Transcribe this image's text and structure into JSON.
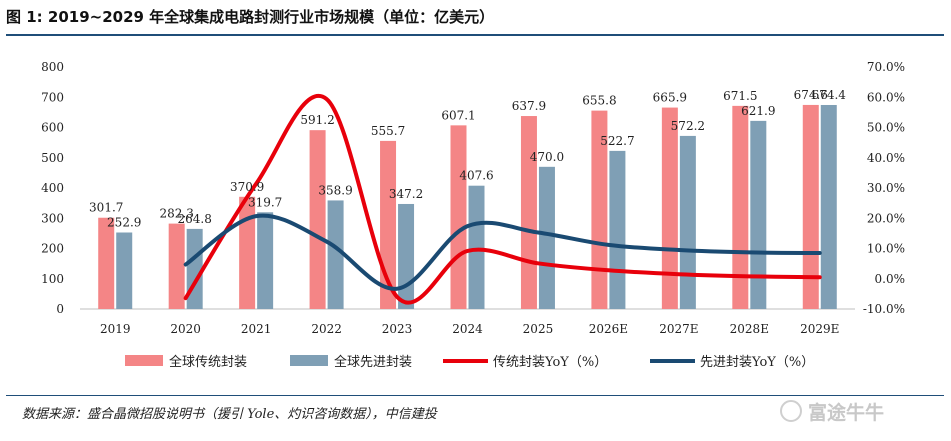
{
  "title": "图 1: 2019~2029 年全球集成电路封测行业市场规模（单位：亿美元）",
  "source": "数据来源：盛合晶微招股说明书（援引 Yole、灼识咨询数据），中信建投",
  "watermark": "富途牛牛",
  "colors": {
    "traditional_bar": "#f48586",
    "advanced_bar": "#7f9fb5",
    "traditional_line": "#e8000b",
    "advanced_line": "#1a4a72",
    "title_rule": "#1f4e79"
  },
  "chart_data": {
    "type": "bar",
    "categories": [
      "2019",
      "2020",
      "2021",
      "2022",
      "2023",
      "2024",
      "2025",
      "2026E",
      "2027E",
      "2028E",
      "2029E"
    ],
    "series": [
      {
        "name": "全球传统封装",
        "type": "bar",
        "axis": "left",
        "values": [
          301.7,
          282.3,
          370.9,
          591.2,
          555.7,
          607.1,
          637.9,
          655.8,
          665.9,
          671.5,
          674.6
        ],
        "labels": [
          "301.7",
          "282.3",
          "370.9",
          "591.2",
          "555.7",
          "607.1",
          "637.9",
          "655.8",
          "665.9",
          "671.5",
          "674.6"
        ]
      },
      {
        "name": "全球先进封装",
        "type": "bar",
        "axis": "left",
        "values": [
          252.9,
          264.8,
          319.7,
          358.9,
          347.2,
          407.6,
          470.0,
          522.7,
          572.2,
          621.9,
          674.4
        ],
        "labels": [
          "252.9",
          "264.8",
          "319.7",
          "358.9",
          "347.2",
          "407.6",
          "470.0",
          "522.7",
          "572.2",
          "621.9",
          "674.4"
        ]
      },
      {
        "name": "传统封装YoY（%）",
        "type": "line",
        "axis": "right",
        "smooth": true,
        "x": [
          "2020",
          "2021",
          "2022",
          "2023",
          "2024",
          "2025",
          "2026E",
          "2027E",
          "2028E",
          "2029E"
        ],
        "values": [
          -6.4,
          31.4,
          59.4,
          -6.0,
          9.2,
          5.1,
          2.8,
          1.5,
          0.8,
          0.5
        ]
      },
      {
        "name": "先进封装YoY（%）",
        "type": "line",
        "axis": "right",
        "smooth": true,
        "x": [
          "2020",
          "2021",
          "2022",
          "2023",
          "2024",
          "2025",
          "2026E",
          "2027E",
          "2028E",
          "2029E"
        ],
        "values": [
          4.7,
          20.7,
          12.3,
          -3.3,
          17.4,
          15.3,
          11.2,
          9.5,
          8.7,
          8.5
        ]
      }
    ],
    "y_left": {
      "min": 0,
      "max": 800,
      "ticks": [
        "0",
        "100",
        "200",
        "300",
        "400",
        "500",
        "600",
        "700",
        "800"
      ]
    },
    "y_right": {
      "min": -10,
      "max": 70,
      "ticks": [
        "-10.0%",
        "0.0%",
        "10.0%",
        "20.0%",
        "30.0%",
        "40.0%",
        "50.0%",
        "60.0%",
        "70.0%"
      ]
    },
    "grid": false,
    "legend": "bottom"
  }
}
